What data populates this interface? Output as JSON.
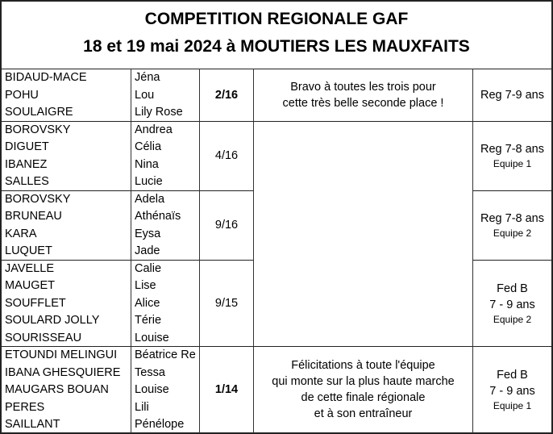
{
  "header": {
    "title": "COMPETITION REGIONALE GAF",
    "subtitle": "18 et 19 mai 2024 à MOUTIERS LES MAUXFAITS"
  },
  "groups": [
    {
      "surnames": [
        "BIDAUD-MACE",
        "POHU",
        "SOULAIGRE"
      ],
      "first_names": [
        "Jéna",
        "Lou",
        "Lily Rose"
      ],
      "rank": "2/16",
      "bold": true,
      "comment": [
        "Bravo à toutes les trois pour",
        "cette très belle seconde place !"
      ],
      "category": [
        "Reg 7-9 ans"
      ]
    },
    {
      "surnames": [
        "BOROVSKY",
        "DIGUET",
        "IBANEZ",
        "SALLES"
      ],
      "first_names": [
        "Andrea",
        "Célia",
        "Nina",
        "Lucie"
      ],
      "rank": "4/16",
      "category": [
        "Reg 7-8 ans"
      ],
      "team": "Equipe 1"
    },
    {
      "surnames": [
        "BOROVSKY",
        "BRUNEAU",
        "KARA",
        "LUQUET"
      ],
      "first_names": [
        "Adela",
        "Athénaïs",
        "Eysa",
        "Jade"
      ],
      "rank": "9/16",
      "category": [
        "Reg 7-8 ans"
      ],
      "team": "Equipe 2"
    },
    {
      "surnames": [
        "JAVELLE",
        "MAUGET",
        "SOUFFLET",
        "SOULARD JOLLY",
        "SOURISSEAU"
      ],
      "first_names": [
        "Calie",
        "Lise",
        "Alice",
        "Térie",
        "Louise"
      ],
      "rank": "9/15",
      "category": [
        "Fed B",
        "7 - 9 ans"
      ],
      "team": "Equipe 2"
    },
    {
      "surnames": [
        "ETOUNDI MELINGUI",
        "IBANA GHESQUIERE",
        "MAUGARS BOUAN",
        "PERES",
        "SAILLANT"
      ],
      "first_names": [
        "Béatrice Re",
        "Tessa",
        "Louise",
        "Lili",
        "Pénélope"
      ],
      "rank": "1/14",
      "bold": true,
      "comment": [
        "Félicitations à toute l'équipe",
        "qui monte sur la plus haute marche",
        "de cette finale régionale",
        "et  à son entraîneur"
      ],
      "category": [
        "Fed B",
        "7 - 9 ans"
      ],
      "team": "Equipe 1"
    }
  ]
}
